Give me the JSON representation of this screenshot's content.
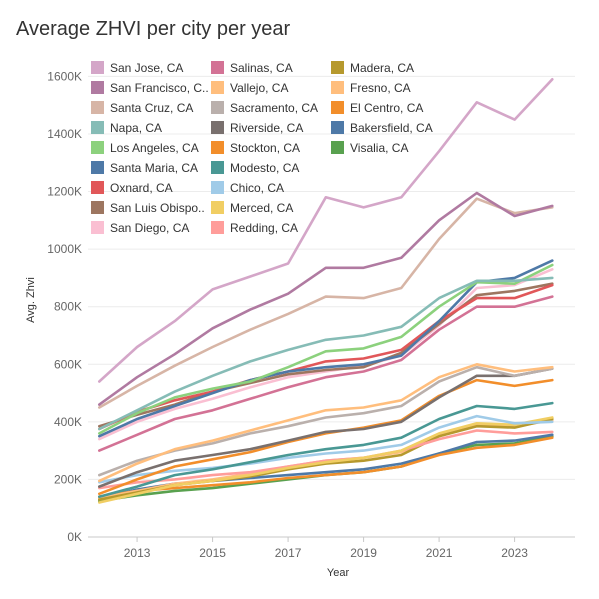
{
  "chart_data": {
    "type": "line",
    "title": "Average ZHVI per city per year",
    "xlabel": "Year",
    "ylabel": "Avg. Zhvi",
    "xlim": [
      2011.7,
      2024.6
    ],
    "ylim": [
      0,
      1650000
    ],
    "x_ticks": [
      2013,
      2015,
      2017,
      2019,
      2021,
      2023
    ],
    "y_ticks": [
      0,
      200000,
      400000,
      600000,
      800000,
      1000000,
      1200000,
      1400000,
      1600000
    ],
    "y_tick_labels": [
      "0K",
      "200K",
      "400K",
      "600K",
      "800K",
      "1000K",
      "1200K",
      "1400K",
      "1600K"
    ],
    "grid": "horizontal",
    "legend_position": "top-left",
    "x": [
      2012,
      2013,
      2014,
      2015,
      2016,
      2017,
      2018,
      2019,
      2020,
      2021,
      2022,
      2023,
      2024
    ],
    "series": [
      {
        "name": "San Jose, CA",
        "color": "#d4a6c8",
        "values": [
          540000,
          660000,
          750000,
          860000,
          905000,
          950000,
          1180000,
          1145000,
          1180000,
          1340000,
          1510000,
          1450000,
          1590000
        ]
      },
      {
        "name": "San Francisco, C..",
        "color": "#b07aa1",
        "values": [
          460000,
          555000,
          635000,
          725000,
          790000,
          845000,
          935000,
          935000,
          970000,
          1100000,
          1195000,
          1115000,
          1150000
        ]
      },
      {
        "name": "Santa Cruz, CA",
        "color": "#d7b5a6",
        "values": [
          450000,
          525000,
          595000,
          660000,
          720000,
          775000,
          835000,
          830000,
          865000,
          1035000,
          1175000,
          1125000,
          1145000
        ]
      },
      {
        "name": "Napa, CA",
        "color": "#86bcb6",
        "values": [
          375000,
          440000,
          505000,
          560000,
          610000,
          650000,
          685000,
          700000,
          730000,
          830000,
          890000,
          890000,
          900000
        ]
      },
      {
        "name": "Los Angeles, CA",
        "color": "#8cd17d",
        "values": [
          360000,
          430000,
          485000,
          515000,
          540000,
          590000,
          645000,
          655000,
          695000,
          800000,
          885000,
          880000,
          945000
        ]
      },
      {
        "name": "Santa Maria, CA",
        "color": "#4e79a7",
        "values": [
          350000,
          410000,
          455000,
          500000,
          545000,
          575000,
          590000,
          600000,
          630000,
          750000,
          885000,
          900000,
          960000
        ]
      },
      {
        "name": "Oxnard, CA",
        "color": "#e15759",
        "values": [
          375000,
          435000,
          475000,
          505000,
          545000,
          575000,
          610000,
          620000,
          650000,
          750000,
          830000,
          830000,
          875000
        ]
      },
      {
        "name": "San Luis Obispo..",
        "color": "#9d7660",
        "values": [
          385000,
          425000,
          460000,
          505000,
          535000,
          565000,
          580000,
          590000,
          640000,
          740000,
          840000,
          855000,
          880000
        ]
      },
      {
        "name": "San Diego, CA",
        "color": "#fabfd2",
        "values": [
          340000,
          400000,
          445000,
          480000,
          520000,
          555000,
          575000,
          595000,
          630000,
          735000,
          865000,
          875000,
          930000
        ]
      },
      {
        "name": "Salinas, CA",
        "color": "#d37295",
        "values": [
          300000,
          355000,
          410000,
          440000,
          480000,
          520000,
          555000,
          575000,
          615000,
          720000,
          800000,
          800000,
          835000
        ]
      },
      {
        "name": "Vallejo, CA",
        "color": "#ffbe7d",
        "values": [
          195000,
          255000,
          305000,
          335000,
          370000,
          405000,
          440000,
          450000,
          475000,
          555000,
          600000,
          575000,
          590000
        ]
      },
      {
        "name": "Sacramento, CA",
        "color": "#bab0ac",
        "values": [
          215000,
          265000,
          300000,
          325000,
          360000,
          385000,
          415000,
          430000,
          455000,
          540000,
          590000,
          560000,
          585000
        ]
      },
      {
        "name": "Riverside, CA",
        "color": "#79706e",
        "values": [
          175000,
          225000,
          265000,
          285000,
          305000,
          335000,
          365000,
          375000,
          400000,
          485000,
          560000,
          560000,
          585000
        ]
      },
      {
        "name": "Stockton, CA",
        "color": "#f28e2b",
        "values": [
          150000,
          200000,
          245000,
          270000,
          295000,
          330000,
          360000,
          380000,
          405000,
          490000,
          545000,
          525000,
          545000
        ]
      },
      {
        "name": "Modesto, CA",
        "color": "#499894",
        "values": [
          140000,
          175000,
          215000,
          235000,
          260000,
          285000,
          305000,
          320000,
          345000,
          410000,
          455000,
          445000,
          465000
        ]
      },
      {
        "name": "Chico, CA",
        "color": "#a0cbe8",
        "values": [
          190000,
          215000,
          230000,
          240000,
          255000,
          275000,
          290000,
          300000,
          320000,
          380000,
          420000,
          395000,
          400000
        ]
      },
      {
        "name": "Merced, CA",
        "color": "#f1ce63",
        "values": [
          120000,
          150000,
          180000,
          195000,
          215000,
          240000,
          260000,
          275000,
          300000,
          360000,
          395000,
          390000,
          415000
        ]
      },
      {
        "name": "Redding, CA",
        "color": "#ff9d9a",
        "values": [
          170000,
          190000,
          200000,
          215000,
          225000,
          245000,
          265000,
          275000,
          300000,
          340000,
          370000,
          360000,
          365000
        ]
      },
      {
        "name": "Madera, CA",
        "color": "#b6992d",
        "values": [
          130000,
          155000,
          180000,
          195000,
          210000,
          235000,
          255000,
          265000,
          285000,
          350000,
          385000,
          380000,
          410000
        ]
      },
      {
        "name": "Fresno, CA",
        "color": "#ffbe7d",
        "values": [
          135000,
          160000,
          185000,
          200000,
          220000,
          245000,
          265000,
          275000,
          295000,
          355000,
          390000,
          385000,
          405000
        ]
      },
      {
        "name": "El Centro, CA",
        "color": "#f28e2b",
        "values": [
          140000,
          160000,
          170000,
          180000,
          190000,
          205000,
          215000,
          225000,
          245000,
          285000,
          310000,
          320000,
          345000
        ]
      },
      {
        "name": "Bakersfield, CA",
        "color": "#4e79a7",
        "values": [
          135000,
          165000,
          185000,
          195000,
          205000,
          215000,
          225000,
          235000,
          255000,
          290000,
          330000,
          335000,
          355000
        ]
      },
      {
        "name": "Visalia, CA",
        "color": "#59a14f",
        "values": [
          125000,
          145000,
          160000,
          170000,
          185000,
          200000,
          215000,
          225000,
          245000,
          290000,
          320000,
          325000,
          350000
        ]
      }
    ],
    "legend_order": [
      "San Jose, CA",
      "Salinas, CA",
      "Madera, CA",
      "San Francisco, C..",
      "Vallejo, CA",
      "Fresno, CA",
      "Santa Cruz, CA",
      "Sacramento, CA",
      "El Centro, CA",
      "Napa, CA",
      "Riverside, CA",
      "Bakersfield, CA",
      "Los Angeles, CA",
      "Stockton, CA",
      "Visalia, CA",
      "Santa Maria, CA",
      "Modesto, CA",
      "Oxnard, CA",
      "Chico, CA",
      "San Luis Obispo..",
      "Merced, CA",
      "San Diego, CA",
      "Redding, CA"
    ]
  }
}
